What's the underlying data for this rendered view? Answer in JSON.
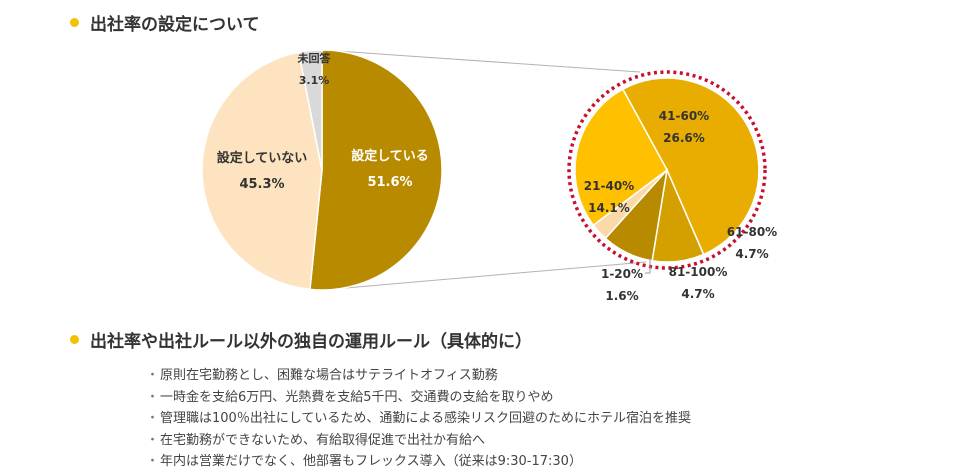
{
  "heading1": "出社率の設定について",
  "heading2": "出社率や出社ルール以外の独自の運用ルール（具体的に）",
  "colors": {
    "accent_dot": "#f2c200",
    "setting": "#b88a00",
    "not_setting": "#fde3bf",
    "no_answer": "#d9d9d9",
    "highlight_ring": "#c8102e",
    "pct_41_60": "#e8ad00",
    "pct_21_40": "#ffc000",
    "pct_1_20": "#fbd9a8",
    "pct_81_100": "#b88a00",
    "pct_61_80": "#d4a000"
  },
  "chart_data": [
    {
      "type": "pie",
      "title": "",
      "slices": [
        {
          "label": "設定している",
          "value": 51.6,
          "value_label": "51.6%"
        },
        {
          "label": "設定していない",
          "value": 45.3,
          "value_label": "45.3%"
        },
        {
          "label": "未回答",
          "value": 3.1,
          "value_label": "3.1%"
        }
      ]
    },
    {
      "type": "pie",
      "title": "",
      "slices": [
        {
          "label": "41-60%",
          "value": 26.6,
          "value_label": "26.6%"
        },
        {
          "label": "61-80%",
          "value": 4.7,
          "value_label": "4.7%"
        },
        {
          "label": "81-100%",
          "value": 4.7,
          "value_label": "4.7%"
        },
        {
          "label": "1-20%",
          "value": 1.6,
          "value_label": "1.6%"
        },
        {
          "label": "21-40%",
          "value": 14.1,
          "value_label": "14.1%"
        }
      ]
    }
  ],
  "bullets": [
    "原則在宅勤務とし、困難な場合はサテライトオフィス勤務",
    "一時金を支給6万円、光熱費を支給5千円、交通費の支給を取りやめ",
    "管理職は100％出社にしているため、通勤による感染リスク回避のためにホテル宿泊を推奨",
    "在宅勤務ができないため、有給取得促進で出社か有給へ",
    "年内は営業だけでなく、他部署もフレックス導入（従来は9:30-17:30）"
  ],
  "bullet_mark": "・"
}
